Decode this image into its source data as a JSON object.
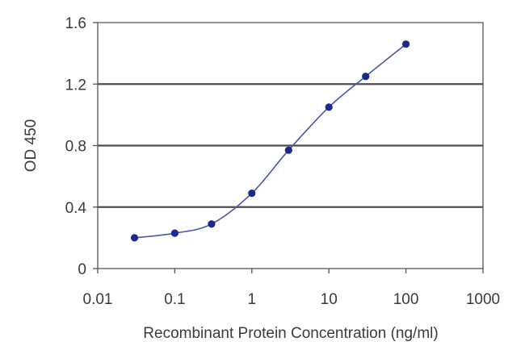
{
  "chart_data": {
    "type": "line",
    "title": "",
    "xlabel": "Recombinant Protein Concentration (ng/ml)",
    "ylabel": "OD 450",
    "x_scale": "log",
    "xlim": [
      0.01,
      1000
    ],
    "ylim": [
      0,
      1.6
    ],
    "x_ticks": [
      0.01,
      0.1,
      1,
      10,
      100,
      1000
    ],
    "x_tick_labels": [
      "0.01",
      "0.1",
      "1",
      "10",
      "100",
      "1000"
    ],
    "y_ticks": [
      0,
      0.4,
      0.8,
      1.2,
      1.6
    ],
    "y_tick_labels": [
      "0",
      "0.4",
      "0.8",
      "1.2",
      "1.6"
    ],
    "grid": "horizontal",
    "legend": "none",
    "line_color": "#4a55b0",
    "marker_color": "#1a2a8c",
    "series": [
      {
        "x": [
          0.03,
          0.1,
          0.3,
          1,
          3,
          10,
          30,
          100
        ],
        "y": [
          0.2,
          0.23,
          0.29,
          0.49,
          0.77,
          1.05,
          1.25,
          1.46
        ]
      }
    ]
  }
}
